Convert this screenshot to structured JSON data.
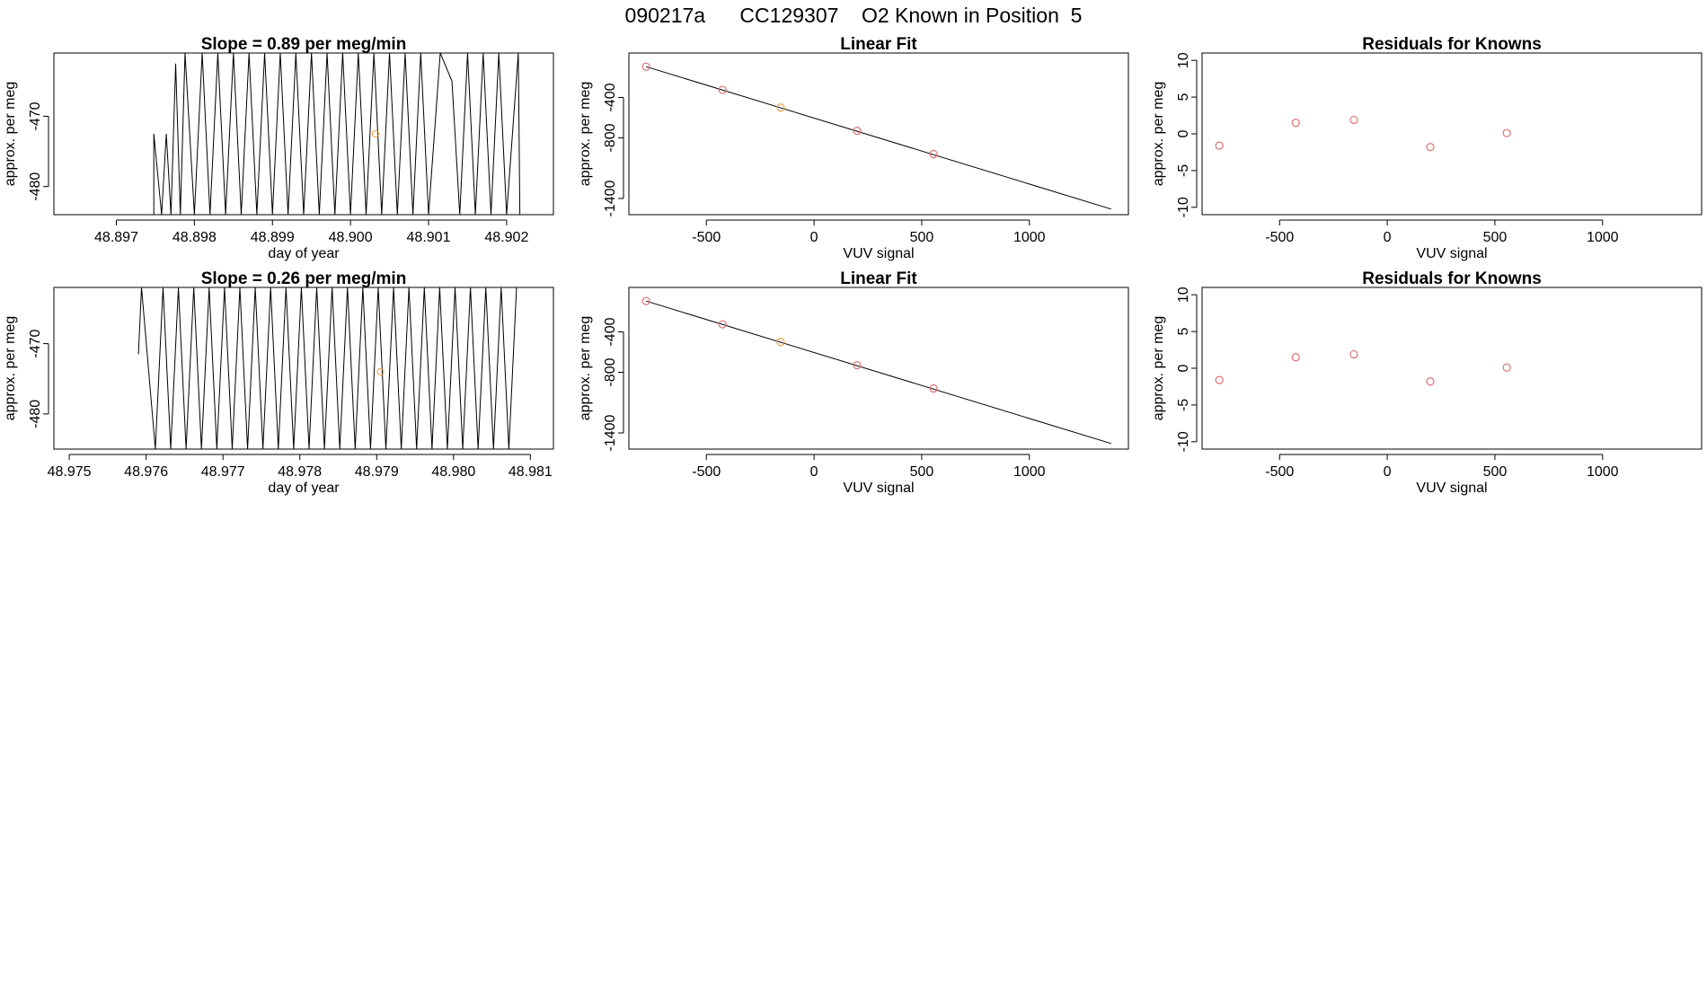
{
  "figure": {
    "title": "090217a      CC129307    O2 Known in Position  5"
  },
  "colors": {
    "line": "#000000",
    "known_point": "#e07070",
    "highlight_point": "#e8a040",
    "fit_line": "#000000"
  },
  "chart_data": [
    {
      "type": "line",
      "title": "Slope =  0.89  per meg/min",
      "xlabel": "day of year",
      "ylabel": "approx. per meg",
      "xlim": [
        48.8962,
        48.9026
      ],
      "ylim": [
        -484,
        -461
      ],
      "xticks": [
        48.897,
        48.898,
        48.899,
        48.9,
        48.901,
        48.902
      ],
      "xtick_labels": [
        "48.897",
        "48.898",
        "48.899",
        "48.900",
        "48.901",
        "48.902"
      ],
      "yticks": [
        -480,
        -470
      ],
      "ytick_labels": [
        "-480",
        "-470"
      ],
      "series": [
        {
          "x": [
            48.8962,
            48.89748,
            48.89748,
            48.89758,
            48.89764,
            48.8977,
            48.89776,
            48.89782,
            48.89788,
            48.898,
            48.8981,
            48.8982,
            48.8983,
            48.8984,
            48.8985,
            48.8986,
            48.8987,
            48.8988,
            48.8989,
            48.899,
            48.8991,
            48.8992,
            48.8993,
            48.8994,
            48.8995,
            48.8996,
            48.8997,
            48.8998,
            48.8999,
            48.9,
            48.9001,
            48.9002,
            48.9003,
            48.9004,
            48.9005,
            48.9006,
            48.9007,
            48.9008,
            48.9009,
            48.901,
            48.90115,
            48.9013,
            48.9014,
            48.9015,
            48.9016,
            48.9017,
            48.9018,
            48.9019,
            48.902,
            48.90215,
            48.90217
          ],
          "y": [
            -484,
            -484,
            -472.5,
            -484,
            -472.5,
            -484,
            -462.5,
            -484,
            -461,
            -484,
            -461,
            -484,
            -461,
            -484,
            -461,
            -484,
            -461,
            -484,
            -461,
            -484,
            -461,
            -484,
            -461,
            -484,
            -461,
            -484,
            -461,
            -484,
            -461,
            -484,
            -461,
            -484,
            -461,
            -484,
            -461,
            -484,
            -461,
            -484,
            -461,
            -484,
            -461,
            -465,
            -484,
            -461,
            -484,
            -461,
            -484,
            -461,
            -484,
            -461,
            -484
          ]
        }
      ],
      "highlight_points": [
        {
          "x": 48.90032,
          "y": -472.5
        }
      ]
    },
    {
      "type": "scatter",
      "title": "Linear Fit",
      "xlabel": "VUV signal",
      "ylabel": "approx. per meg",
      "xlim": [
        -860,
        1460
      ],
      "ylim": [
        -1560,
        40
      ],
      "xticks": [
        -500,
        0,
        500,
        1000
      ],
      "xtick_labels": [
        "-500",
        "0",
        "500",
        "1000"
      ],
      "yticks": [
        -1400,
        -800,
        -400
      ],
      "ytick_labels": [
        "-1400",
        "-800",
        "-400"
      ],
      "fit_line": {
        "x": [
          -780,
          1380
        ],
        "y": [
          -95,
          -1505
        ]
      },
      "points": [
        {
          "x": -780,
          "y": -95,
          "highlight": false
        },
        {
          "x": -425,
          "y": -325,
          "highlight": false
        },
        {
          "x": -155,
          "y": -500,
          "highlight": true
        },
        {
          "x": 200,
          "y": -730,
          "highlight": false
        },
        {
          "x": 555,
          "y": -960,
          "highlight": false
        }
      ]
    },
    {
      "type": "scatter",
      "title": "Residuals for Knowns",
      "xlabel": "VUV signal",
      "ylabel": "approx. per meg",
      "xlim": [
        -860,
        1460
      ],
      "ylim": [
        -11,
        11
      ],
      "xticks": [
        -500,
        0,
        500,
        1000
      ],
      "xtick_labels": [
        "-500",
        "0",
        "500",
        "1000"
      ],
      "yticks": [
        -10,
        -5,
        0,
        5,
        10
      ],
      "ytick_labels": [
        "-10",
        "-5",
        "0",
        "5",
        "10"
      ],
      "points": [
        {
          "x": -780,
          "y": -1.6
        },
        {
          "x": -425,
          "y": 1.5
        },
        {
          "x": -155,
          "y": 1.9
        },
        {
          "x": 200,
          "y": -1.8
        },
        {
          "x": 555,
          "y": 0.1
        }
      ]
    },
    {
      "type": "line",
      "title": "Slope =  0.26  per meg/min",
      "xlabel": "day of year",
      "ylabel": "approx. per meg",
      "xlim": [
        48.9748,
        48.9813
      ],
      "ylim": [
        -485,
        -462
      ],
      "xticks": [
        48.975,
        48.976,
        48.977,
        48.978,
        48.979,
        48.98,
        48.981
      ],
      "xtick_labels": [
        "48.975",
        "48.976",
        "48.977",
        "48.978",
        "48.979",
        "48.980",
        "48.981"
      ],
      "yticks": [
        -480,
        -470
      ],
      "ytick_labels": [
        "-480",
        "-470"
      ],
      "series": [
        {
          "x": [
            48.9759,
            48.97594,
            48.97612,
            48.97622,
            48.97632,
            48.97642,
            48.97652,
            48.97662,
            48.97672,
            48.97682,
            48.97692,
            48.97702,
            48.97712,
            48.97722,
            48.97732,
            48.97742,
            48.97752,
            48.97762,
            48.97772,
            48.97782,
            48.97792,
            48.97802,
            48.97812,
            48.97822,
            48.97832,
            48.97842,
            48.97852,
            48.97862,
            48.97872,
            48.97882,
            48.97892,
            48.97902,
            48.97912,
            48.97922,
            48.97932,
            48.97942,
            48.97952,
            48.97962,
            48.97972,
            48.97982,
            48.97992,
            48.98002,
            48.98012,
            48.98022,
            48.98032,
            48.98042,
            48.98052,
            48.98062,
            48.98072,
            48.98082
          ],
          "y": [
            -471.5,
            -462,
            -485,
            -462,
            -485,
            -462,
            -485,
            -462,
            -485,
            -462,
            -485,
            -462,
            -485,
            -462,
            -485,
            -462,
            -485,
            -462,
            -485,
            -462,
            -485,
            -462,
            -485,
            -462,
            -485,
            -462,
            -485,
            -462,
            -485,
            -462,
            -485,
            -462,
            -485,
            -462,
            -485,
            -462,
            -485,
            -462,
            -485,
            -462,
            -485,
            -462,
            -485,
            -462,
            -485,
            -462,
            -485,
            -462,
            -485,
            -462
          ]
        }
      ],
      "highlight_points": [
        {
          "x": 48.97905,
          "y": -474
        }
      ]
    },
    {
      "type": "scatter",
      "title": "Linear Fit",
      "xlabel": "VUV signal",
      "ylabel": "approx. per meg",
      "xlim": [
        -860,
        1460
      ],
      "ylim": [
        -1560,
        40
      ],
      "xticks": [
        -500,
        0,
        500,
        1000
      ],
      "xtick_labels": [
        "-500",
        "0",
        "500",
        "1000"
      ],
      "yticks": [
        -1400,
        -800,
        -400
      ],
      "ytick_labels": [
        "-1400",
        "-800",
        "-400"
      ],
      "fit_line": {
        "x": [
          -780,
          1380
        ],
        "y": [
          -95,
          -1505
        ]
      },
      "points": [
        {
          "x": -780,
          "y": -95,
          "highlight": false
        },
        {
          "x": -425,
          "y": -325,
          "highlight": false
        },
        {
          "x": -155,
          "y": -500,
          "highlight": true
        },
        {
          "x": 200,
          "y": -730,
          "highlight": false
        },
        {
          "x": 555,
          "y": -960,
          "highlight": false
        }
      ]
    },
    {
      "type": "scatter",
      "title": "Residuals for Knowns",
      "xlabel": "VUV signal",
      "ylabel": "approx. per meg",
      "xlim": [
        -860,
        1460
      ],
      "ylim": [
        -11,
        11
      ],
      "xticks": [
        -500,
        0,
        500,
        1000
      ],
      "xtick_labels": [
        "-500",
        "0",
        "500",
        "1000"
      ],
      "yticks": [
        -10,
        -5,
        0,
        5,
        10
      ],
      "ytick_labels": [
        "-10",
        "-5",
        "0",
        "5",
        "10"
      ],
      "points": [
        {
          "x": -780,
          "y": -1.6
        },
        {
          "x": -425,
          "y": 1.5
        },
        {
          "x": -155,
          "y": 1.9
        },
        {
          "x": 200,
          "y": -1.8
        },
        {
          "x": 555,
          "y": 0.1
        }
      ]
    }
  ]
}
